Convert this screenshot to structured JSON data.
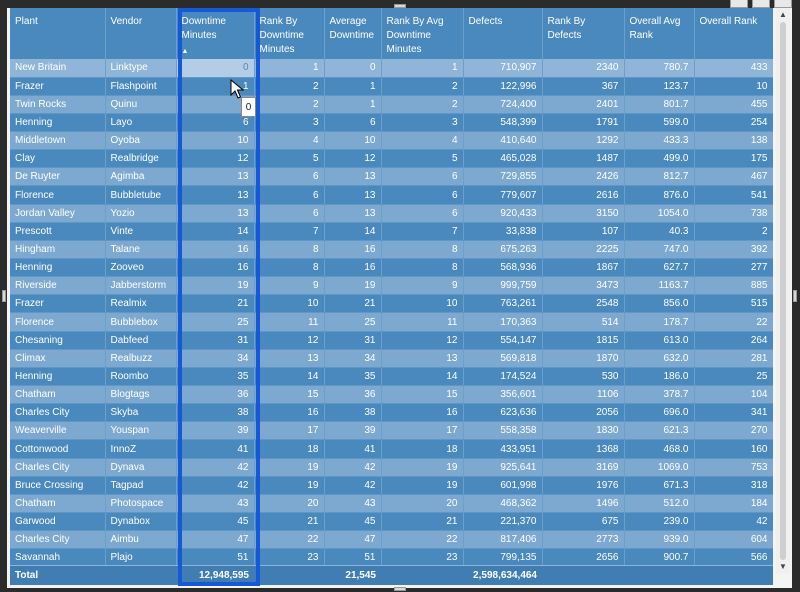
{
  "header": {
    "plant": "Plant",
    "vendor": "Vendor",
    "downtime": "Downtime Minutes",
    "rank_by_downtime": "Rank By Downtime Minutes",
    "avg_downtime": "Average Downtime",
    "rank_by_avg": "Rank By Avg Downtime Minutes",
    "defects": "Defects",
    "rank_by_defects": "Rank By Defects",
    "overall_avg_rank": "Overall Avg Rank",
    "overall_rank": "Overall Rank",
    "sort_indicator": "▲"
  },
  "rows": [
    [
      "New Britain",
      "Linktype",
      "0",
      "1",
      "0",
      "1",
      "710,907",
      "2340",
      "780.7",
      "433"
    ],
    [
      "Frazer",
      "Flashpoint",
      "1",
      "2",
      "1",
      "2",
      "122,996",
      "367",
      "123.7",
      "10"
    ],
    [
      "Twin Rocks",
      "Quinu",
      "1",
      "2",
      "1",
      "2",
      "724,400",
      "2401",
      "801.7",
      "455"
    ],
    [
      "Henning",
      "Layo",
      "6",
      "3",
      "6",
      "3",
      "548,399",
      "1791",
      "599.0",
      "254"
    ],
    [
      "Middletown",
      "Oyoba",
      "10",
      "4",
      "10",
      "4",
      "410,640",
      "1292",
      "433.3",
      "138"
    ],
    [
      "Clay",
      "Realbridge",
      "12",
      "5",
      "12",
      "5",
      "465,028",
      "1487",
      "499.0",
      "175"
    ],
    [
      "De Ruyter",
      "Agimba",
      "13",
      "6",
      "13",
      "6",
      "729,855",
      "2426",
      "812.7",
      "467"
    ],
    [
      "Florence",
      "Bubbletube",
      "13",
      "6",
      "13",
      "6",
      "779,607",
      "2616",
      "876.0",
      "541"
    ],
    [
      "Jordan Valley",
      "Yozio",
      "13",
      "6",
      "13",
      "6",
      "920,433",
      "3150",
      "1054.0",
      "738"
    ],
    [
      "Prescott",
      "Vinte",
      "14",
      "7",
      "14",
      "7",
      "33,838",
      "107",
      "40.3",
      "2"
    ],
    [
      "Hingham",
      "Talane",
      "16",
      "8",
      "16",
      "8",
      "675,263",
      "2225",
      "747.0",
      "392"
    ],
    [
      "Henning",
      "Zooveo",
      "16",
      "8",
      "16",
      "8",
      "568,936",
      "1867",
      "627.7",
      "277"
    ],
    [
      "Riverside",
      "Jabberstorm",
      "19",
      "9",
      "19",
      "9",
      "999,759",
      "3473",
      "1163.7",
      "885"
    ],
    [
      "Frazer",
      "Realmix",
      "21",
      "10",
      "21",
      "10",
      "763,261",
      "2548",
      "856.0",
      "515"
    ],
    [
      "Florence",
      "Bubblebox",
      "25",
      "11",
      "25",
      "11",
      "170,363",
      "514",
      "178.7",
      "22"
    ],
    [
      "Chesaning",
      "Dabfeed",
      "31",
      "12",
      "31",
      "12",
      "554,147",
      "1815",
      "613.0",
      "264"
    ],
    [
      "Climax",
      "Realbuzz",
      "34",
      "13",
      "34",
      "13",
      "569,818",
      "1870",
      "632.0",
      "281"
    ],
    [
      "Henning",
      "Roombo",
      "35",
      "14",
      "35",
      "14",
      "174,524",
      "530",
      "186.0",
      "25"
    ],
    [
      "Chatham",
      "Blogtags",
      "36",
      "15",
      "36",
      "15",
      "356,601",
      "1106",
      "378.7",
      "104"
    ],
    [
      "Charles City",
      "Skyba",
      "38",
      "16",
      "38",
      "16",
      "623,636",
      "2056",
      "696.0",
      "341"
    ],
    [
      "Weaverville",
      "Youspan",
      "39",
      "17",
      "39",
      "17",
      "558,358",
      "1830",
      "621.3",
      "270"
    ],
    [
      "Cottonwood",
      "InnoZ",
      "41",
      "18",
      "41",
      "18",
      "433,951",
      "1368",
      "468.0",
      "160"
    ],
    [
      "Charles City",
      "Dynava",
      "42",
      "19",
      "42",
      "19",
      "925,641",
      "3169",
      "1069.0",
      "753"
    ],
    [
      "Bruce Crossing",
      "Tagpad",
      "42",
      "19",
      "42",
      "19",
      "601,998",
      "1976",
      "671.3",
      "318"
    ],
    [
      "Chatham",
      "Photospace",
      "43",
      "20",
      "43",
      "20",
      "468,362",
      "1496",
      "512.0",
      "184"
    ],
    [
      "Garwood",
      "Dynabox",
      "45",
      "21",
      "45",
      "21",
      "221,370",
      "675",
      "239.0",
      "42"
    ],
    [
      "Charles City",
      "Aimbu",
      "47",
      "22",
      "47",
      "22",
      "817,406",
      "2773",
      "939.0",
      "604"
    ],
    [
      "Savannah",
      "Plajo",
      "51",
      "23",
      "51",
      "23",
      "799,135",
      "2656",
      "900.7",
      "566"
    ]
  ],
  "totals": {
    "label": "Total",
    "downtime": "12,948,595",
    "avg_downtime": "21,545",
    "defects": "2,598,634,464"
  },
  "tooltip": {
    "value": "0"
  },
  "colors": {
    "header_bg": "#4a89bd",
    "row_light": "#7da9d0",
    "row_dark": "#4a89bd",
    "highlight_border": "#1559d6"
  }
}
